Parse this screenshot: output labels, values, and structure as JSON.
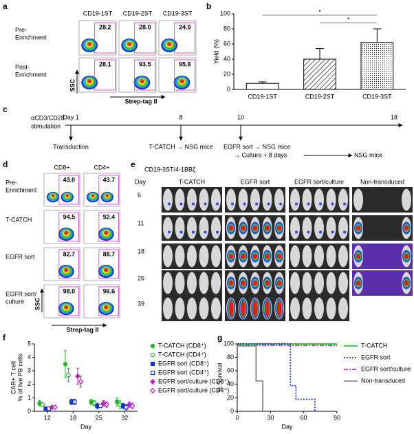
{
  "panel_labels": [
    "a",
    "b",
    "c",
    "d",
    "e",
    "f",
    "g"
  ],
  "flow_a": {
    "columns": [
      "CD19-1ST",
      "CD19-2ST",
      "CD19-3ST"
    ],
    "rows": [
      {
        "label": [
          "Pre-",
          "Enrichment"
        ],
        "values": [
          "28.2",
          "28.0",
          "24.9"
        ]
      },
      {
        "label": [
          "Post-",
          "Enrichment"
        ],
        "values": [
          "28.1",
          "93.5",
          "95.8"
        ]
      }
    ],
    "y_axis": "SSC",
    "x_axis": "Strep-tag II"
  },
  "timeline": {
    "stimulation": [
      "αCD3/CD28",
      "stimulation"
    ],
    "days": [
      "Day 1",
      "8",
      "10",
      "18"
    ],
    "events": [
      "Transduction",
      "T-CATCH → NSG mice",
      "EGFR sort → NSG mice",
      "→ Culture + 8 days",
      "NSG mice"
    ]
  },
  "flow_d": {
    "columns": [
      "CD8+",
      "CD4+"
    ],
    "rows": [
      {
        "label": [
          "Pre-",
          "Enrichment"
        ],
        "values": [
          "43.0",
          "43.7"
        ]
      },
      {
        "label": [
          "T-CATCH"
        ],
        "values": [
          "94.5",
          "92.4"
        ]
      },
      {
        "label": [
          "EGFR sort"
        ],
        "values": [
          "82.7",
          "88.7"
        ]
      },
      {
        "label": [
          "EGFR sort/",
          "culture"
        ],
        "values": [
          "98.0",
          "96.6"
        ]
      }
    ],
    "y_axis": "SSC",
    "x_axis": "Strep-tag II"
  },
  "imaging": {
    "construct": "CD19-3ST/4-1BBζ",
    "day_label": "Day",
    "groups": [
      "T-CATCH",
      "EGFR sort",
      "EGFR sort/culture",
      "Non-transduced"
    ],
    "days": [
      "6",
      "11",
      "18",
      "25",
      "39"
    ]
  },
  "chart_data": [
    {
      "type": "bar",
      "y_label": "Yield (%)",
      "categories": [
        "CD19-1ST",
        "CD19-2ST",
        "CD19-3ST"
      ],
      "values": [
        8,
        40,
        62
      ],
      "errors": [
        2,
        14,
        18
      ],
      "patterns": [
        "none",
        "hatch",
        "dots"
      ],
      "color": "#000000",
      "ylim": [
        0,
        100
      ],
      "yticks": [
        0,
        20,
        40,
        60,
        80,
        100
      ],
      "comparisons": [
        {
          "from": 0,
          "to": 2,
          "label": "*"
        },
        {
          "from": 1,
          "to": 2,
          "label": "*"
        }
      ]
    },
    {
      "type": "scatter",
      "y_label": [
        "CAR+ T cell",
        "% of live PB cells"
      ],
      "x_label": "Day",
      "categories": [
        12,
        18,
        25,
        32
      ],
      "ylim": [
        0,
        5
      ],
      "yticks": [
        0,
        1,
        2,
        3,
        4,
        5
      ],
      "series": [
        {
          "name": "T-CATCH (CD8⁺)",
          "color": "#22b422",
          "marker": "circle",
          "filled": true,
          "values": [
            0.6,
            3.5,
            0.7,
            0.7
          ],
          "errors": [
            0.2,
            1.0,
            0.2,
            0.3
          ]
        },
        {
          "name": "T-CATCH (CD4⁺)",
          "color": "#22b422",
          "marker": "circle",
          "filled": false,
          "values": [
            0.5,
            2.7,
            0.6,
            0.5
          ],
          "errors": [
            0.1,
            0.5,
            0.2,
            0.3
          ]
        },
        {
          "name": "EGFR sort (CD8⁺)",
          "color": "#1a2fd0",
          "marker": "square",
          "filled": true,
          "values": [
            0.2,
            0.7,
            0.4,
            0.4
          ],
          "errors": [
            0.05,
            0.2,
            0.2,
            0.2
          ]
        },
        {
          "name": "EGFR sort (CD4⁺)",
          "color": "#1a2fd0",
          "marker": "square",
          "filled": false,
          "values": [
            0.2,
            0.7,
            0.4,
            0.3
          ],
          "errors": [
            0.05,
            0.2,
            0.1,
            0.2
          ]
        },
        {
          "name": "EGFR sort/culture (CD8⁺)",
          "color": "#c21fc2",
          "marker": "diamond",
          "filled": true,
          "values": [
            0.3,
            2.6,
            0.6,
            0.5
          ],
          "errors": [
            0.05,
            0.6,
            0.2,
            0.2
          ]
        },
        {
          "name": "EGFR sort/culture (CD4⁺)",
          "color": "#c21fc2",
          "marker": "diamond",
          "filled": false,
          "values": [
            0.3,
            2.2,
            0.5,
            0.4
          ],
          "errors": [
            0.1,
            0.4,
            0.2,
            0.2
          ]
        }
      ]
    },
    {
      "type": "line",
      "y_label": "% Survival",
      "x_label": "Day",
      "xlim": [
        0,
        90
      ],
      "xticks": [
        0,
        30,
        60,
        90
      ],
      "ylim": [
        0,
        100
      ],
      "yticks": [
        0,
        20,
        40,
        60,
        80,
        100
      ],
      "series": [
        {
          "name": "T-CATCH",
          "color": "#22cc22",
          "dash": "solid",
          "x": [
            0,
            90
          ],
          "values": [
            100,
            100
          ]
        },
        {
          "name": "EGFR sort",
          "color": "#1a2fd0",
          "dash": "dotted",
          "x": [
            0,
            48,
            48,
            53,
            53,
            70,
            70
          ],
          "values": [
            100,
            100,
            38,
            38,
            18,
            18,
            0
          ]
        },
        {
          "name": "EGFR sort/culture",
          "color": "#e020e0",
          "dash": "dashdot",
          "x": [
            0,
            90
          ],
          "values": [
            98,
            98
          ]
        },
        {
          "name": "Non-transduced",
          "color": "#888888",
          "dash": "solid",
          "x": [
            0,
            17,
            17,
            23,
            23
          ],
          "values": [
            97,
            97,
            45,
            45,
            0
          ]
        }
      ]
    }
  ]
}
